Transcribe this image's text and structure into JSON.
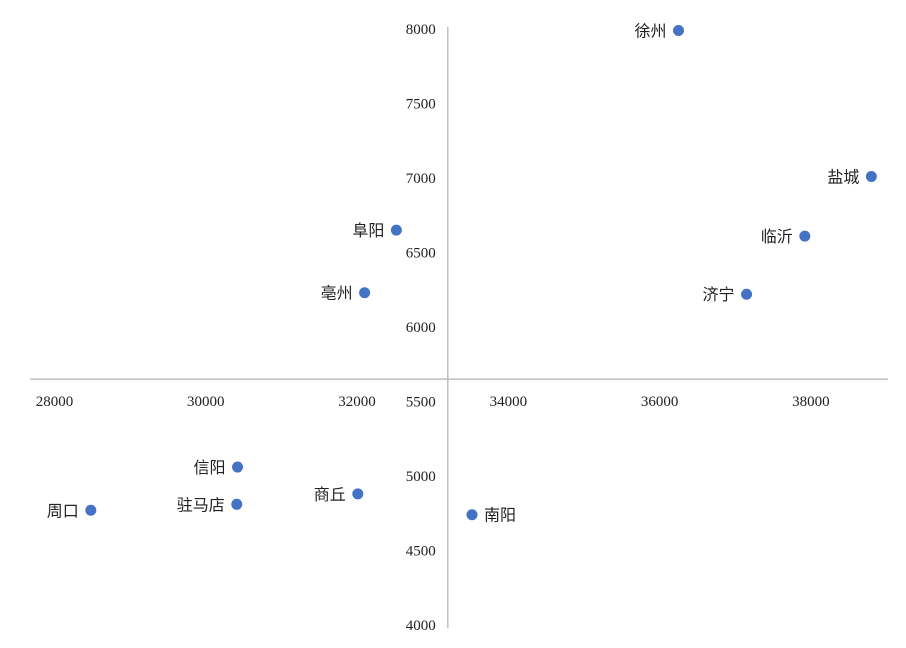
{
  "chart_data": {
    "type": "scatter",
    "title": "",
    "xlabel": "",
    "ylabel": "",
    "grid": false,
    "xlim": [
      28000,
      39000
    ],
    "ylim": [
      4000,
      8000
    ],
    "axis_cross": {
      "x": 33200,
      "y": 5650
    },
    "x_ticks": [
      28000,
      30000,
      32000,
      34000,
      36000,
      38000
    ],
    "y_ticks": [
      4000,
      4500,
      5000,
      5500,
      6000,
      6500,
      7000,
      7500,
      8000
    ],
    "marker_color": "#4472c4",
    "axis_color": "#bfbfbf",
    "points": [
      {
        "label": "徐州",
        "x": 36250,
        "y": 7990,
        "label_side": "left"
      },
      {
        "label": "盐城",
        "x": 38800,
        "y": 7010,
        "label_side": "left"
      },
      {
        "label": "阜阳",
        "x": 32520,
        "y": 6650,
        "label_side": "left"
      },
      {
        "label": "临沂",
        "x": 37920,
        "y": 6610,
        "label_side": "left"
      },
      {
        "label": "亳州",
        "x": 32100,
        "y": 6230,
        "label_side": "left"
      },
      {
        "label": "济宁",
        "x": 37150,
        "y": 6220,
        "label_side": "left"
      },
      {
        "label": "信阳",
        "x": 30420,
        "y": 5060,
        "label_side": "left"
      },
      {
        "label": "驻马店",
        "x": 30410,
        "y": 4810,
        "label_side": "left"
      },
      {
        "label": "商丘",
        "x": 32010,
        "y": 4880,
        "label_side": "left"
      },
      {
        "label": "周口",
        "x": 28480,
        "y": 4770,
        "label_side": "left"
      },
      {
        "label": "南阳",
        "x": 33520,
        "y": 4740,
        "label_side": "right"
      }
    ]
  }
}
